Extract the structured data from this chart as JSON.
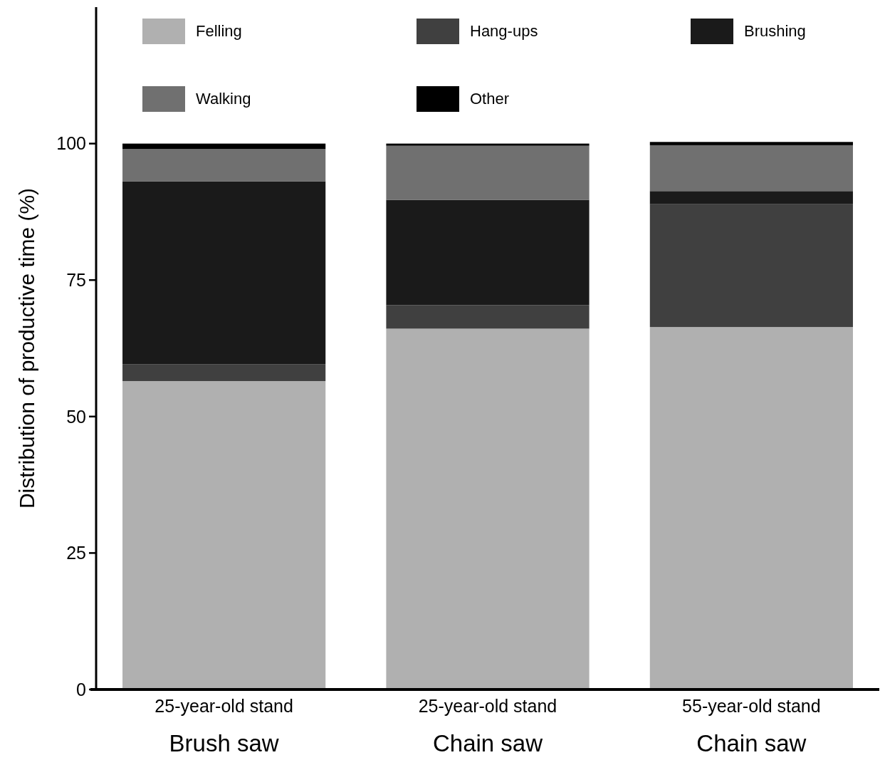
{
  "chart_data": {
    "type": "bar",
    "stacked": true,
    "ylabel": "Distribution of productive time (%)",
    "categories": [
      "25-year-old stand\nBrush saw",
      "25-year-old stand\nChain saw",
      "55-year-old stand\nChain saw"
    ],
    "series": [
      {
        "name": "Felling",
        "color": "#b0b0b0",
        "values": [
          56.5,
          66.1,
          66.4
        ]
      },
      {
        "name": "Hang-ups",
        "color": "#404040",
        "values": [
          3.1,
          4.3,
          22.5
        ]
      },
      {
        "name": "Brushing",
        "color": "#1a1a1a",
        "values": [
          33.5,
          19.3,
          2.4
        ]
      },
      {
        "name": "Walking",
        "color": "#707070",
        "values": [
          5.9,
          9.9,
          8.4
        ]
      },
      {
        "name": "Other",
        "color": "#000000",
        "values": [
          1.0,
          0.4,
          0.6
        ]
      }
    ],
    "ylim": [
      0,
      125
    ],
    "yticks": [
      0,
      25,
      50,
      75,
      100
    ],
    "grid": false,
    "legend": "top"
  }
}
